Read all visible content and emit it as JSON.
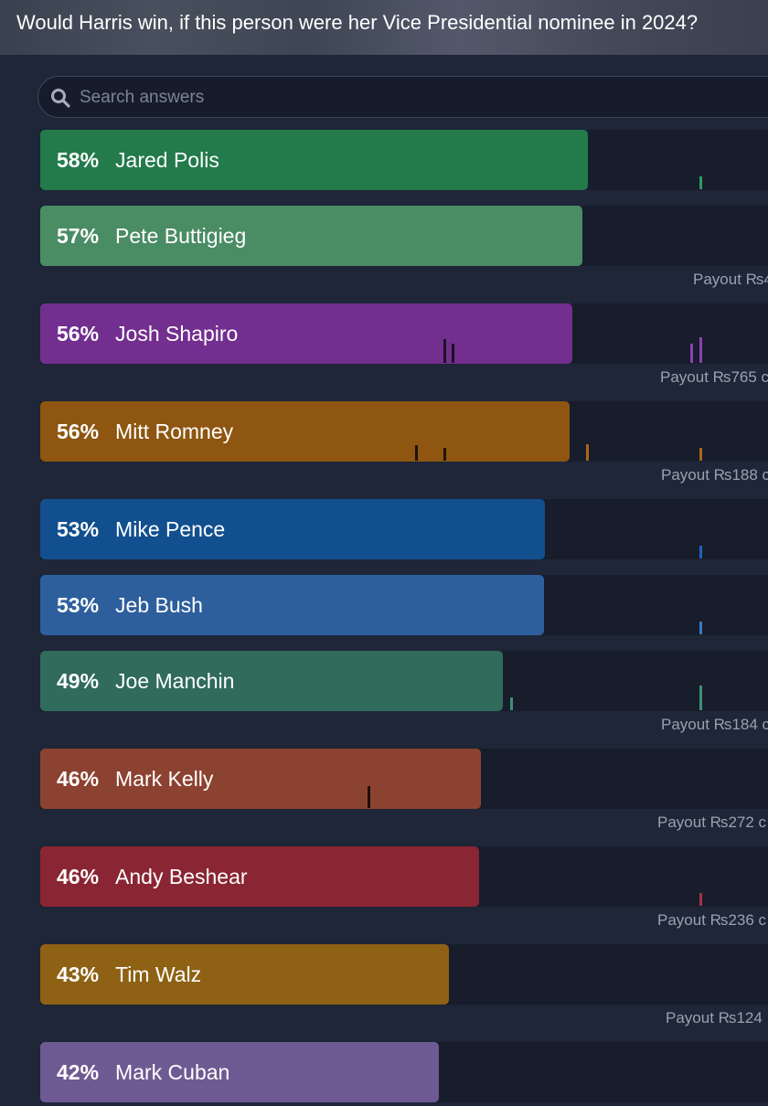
{
  "header": {
    "title": "Would Harris win, if this person were her Vice Presidential nominee in 2024?"
  },
  "search": {
    "placeholder": "Search answers"
  },
  "colors": {
    "page_background": "#1e2637",
    "track": "#171d2b",
    "Jared Polis": "#237a4b",
    "Pete Buttigieg": "#4a8c64",
    "Josh Shapiro": "#722f8f",
    "Mitt Romney": "#8e5610",
    "Mike Pence": "#124f8f",
    "Jeb Bush": "#2d5f9d",
    "Joe Manchin": "#306b5c",
    "Mark Kelly": "#8c4230",
    "Andy Beshear": "#8a2533",
    "Tim Walz": "#8e6114",
    "Mark Cuban": "#6e5a93"
  },
  "answers": [
    {
      "name": "Jared Polis",
      "percent": "58%",
      "probability": 0.58,
      "payout": ""
    },
    {
      "name": "Pete Buttigieg",
      "percent": "57%",
      "probability": 0.57,
      "payout": "Payout ₨4"
    },
    {
      "name": "Josh Shapiro",
      "percent": "56%",
      "probability": 0.56,
      "payout": "Payout ₨765 c"
    },
    {
      "name": "Mitt Romney",
      "percent": "56%",
      "probability": 0.56,
      "payout": "Payout ₨188 c"
    },
    {
      "name": "Mike Pence",
      "percent": "53%",
      "probability": 0.53,
      "payout": ""
    },
    {
      "name": "Jeb Bush",
      "percent": "53%",
      "probability": 0.53,
      "payout": ""
    },
    {
      "name": "Joe Manchin",
      "percent": "49%",
      "probability": 0.49,
      "payout": "Payout ₨184 c"
    },
    {
      "name": "Mark Kelly",
      "percent": "46%",
      "probability": 0.46,
      "payout": "Payout ₨272 c"
    },
    {
      "name": "Andy Beshear",
      "percent": "46%",
      "probability": 0.46,
      "payout": "Payout ₨236 c"
    },
    {
      "name": "Tim Walz",
      "percent": "43%",
      "probability": 0.43,
      "payout": "Payout ₨124"
    },
    {
      "name": "Mark Cuban",
      "percent": "42%",
      "probability": 0.42,
      "payout": ""
    }
  ]
}
